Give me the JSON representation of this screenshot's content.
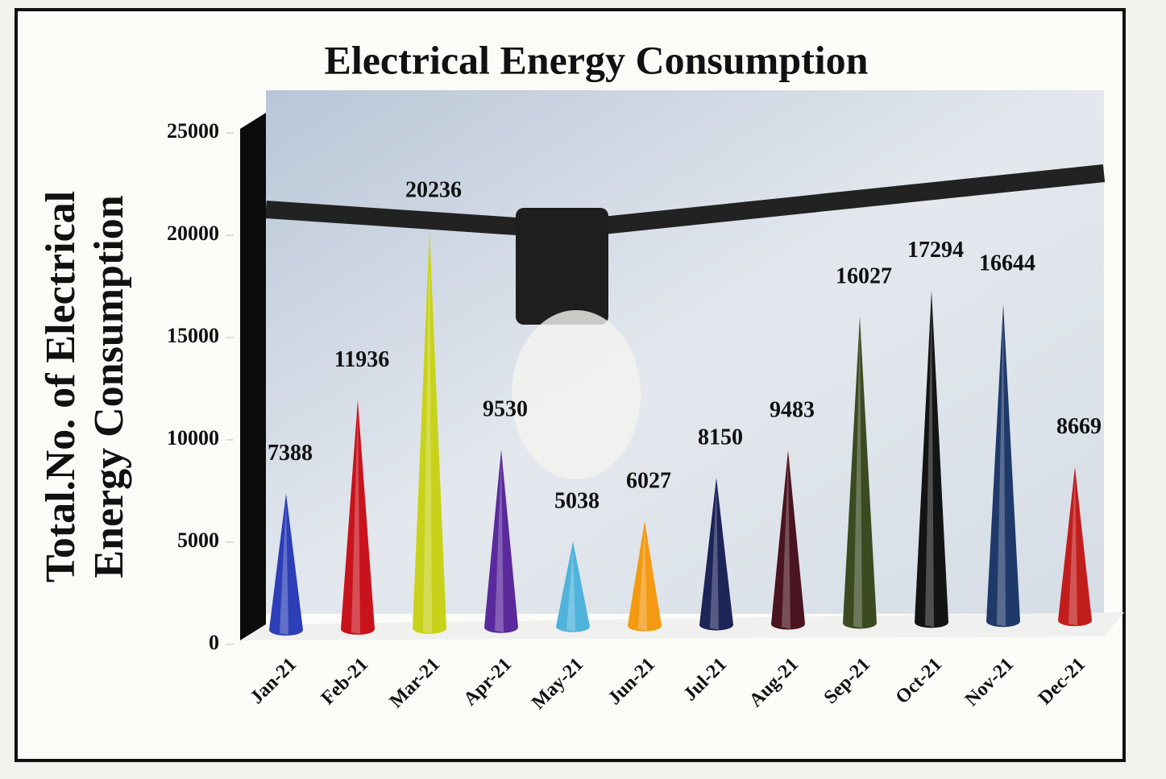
{
  "chart_data": {
    "type": "cone",
    "title": "Electrical Energy Consumption",
    "y_label": [
      "Total.No. of Electrical",
      "Energy Consumption"
    ],
    "categories": [
      "Jan-21",
      "Feb-21",
      "Mar-21",
      "Apr-21",
      "May-21",
      "Jun-21",
      "Jul-21",
      "Aug-21",
      "Sep-21",
      "Oct-21",
      "Nov-21",
      "Dec-21"
    ],
    "values": [
      7388,
      11936,
      20236,
      9530,
      5038,
      6027,
      8150,
      9483,
      16027,
      17294,
      16644,
      8669
    ],
    "colors": [
      "#2c3fb8",
      "#c8131c",
      "#c9d21a",
      "#5a2a9c",
      "#4fb3dc",
      "#f39a12",
      "#1c2458",
      "#4a1420",
      "#3c4a22",
      "#141414",
      "#1f3a6a",
      "#c21d1d"
    ],
    "ylim": [
      0,
      25000
    ],
    "yticks": [
      0,
      5000,
      10000,
      15000,
      20000,
      25000
    ]
  }
}
